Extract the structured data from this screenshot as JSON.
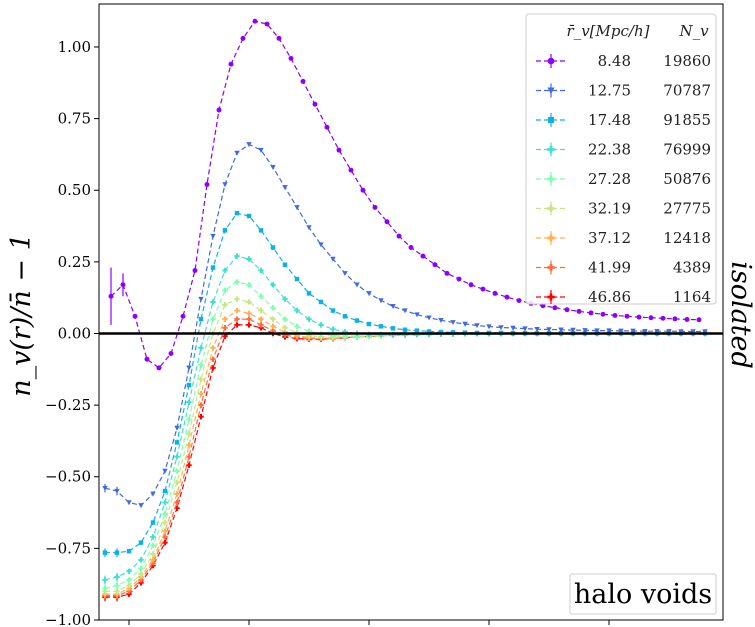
{
  "chart_data": {
    "type": "line",
    "ylabel": "n_v(r)/n̄ − 1",
    "side_label": "isolated",
    "annotation": "halo voids",
    "ylim": [
      -1.0,
      1.15
    ],
    "xlim": [
      0,
      5.2
    ],
    "yticks": [
      -1.0,
      -0.75,
      -0.5,
      -0.25,
      0.0,
      0.25,
      0.5,
      0.75,
      1.0
    ],
    "ytick_labels": [
      "−1.00",
      "−0.75",
      "−0.50",
      "−0.25",
      "0.00",
      "0.25",
      "0.50",
      "0.75",
      "1.00"
    ],
    "xticks": [
      0.25,
      1.25,
      2.25,
      3.25,
      4.25,
      5.25
    ],
    "reference_line": 0.0,
    "legend": {
      "col1_header": "r̄_v[Mpc/h]",
      "col2_header": "N_v",
      "location": "top-right"
    },
    "series": [
      {
        "name": "8.48",
        "count": "19860",
        "color": "#8b00ff",
        "marker": "o",
        "x": [
          0.1,
          0.2,
          0.3,
          0.4,
          0.5,
          0.6,
          0.7,
          0.8,
          0.9,
          1.0,
          1.1,
          1.2,
          1.3,
          1.4,
          1.5,
          1.6,
          1.7,
          1.8,
          1.9,
          2.0,
          2.1,
          2.2,
          2.3,
          2.4,
          2.5,
          2.6,
          2.7,
          2.8,
          2.9,
          3.0,
          3.1,
          3.2,
          3.3,
          3.4,
          3.5,
          3.6,
          3.7,
          3.8,
          3.9,
          4.0,
          4.1,
          4.2,
          4.3,
          4.4,
          4.5,
          4.6,
          4.7,
          4.8,
          4.9,
          5.0
        ],
        "y": [
          0.13,
          0.17,
          0.06,
          -0.09,
          -0.12,
          -0.07,
          0.06,
          0.22,
          0.52,
          0.78,
          0.94,
          1.03,
          1.09,
          1.08,
          1.03,
          0.96,
          0.88,
          0.8,
          0.72,
          0.64,
          0.57,
          0.5,
          0.44,
          0.39,
          0.34,
          0.3,
          0.27,
          0.24,
          0.21,
          0.19,
          0.17,
          0.155,
          0.14,
          0.127,
          0.115,
          0.105,
          0.097,
          0.09,
          0.083,
          0.077,
          0.072,
          0.067,
          0.063,
          0.06,
          0.057,
          0.055,
          0.053,
          0.051,
          0.049,
          0.048
        ]
      },
      {
        "name": "12.75",
        "count": "70787",
        "color": "#4169e1",
        "marker": "v",
        "x": [
          0.05,
          0.15,
          0.25,
          0.35,
          0.45,
          0.55,
          0.65,
          0.75,
          0.85,
          0.95,
          1.05,
          1.15,
          1.25,
          1.35,
          1.45,
          1.55,
          1.65,
          1.75,
          1.85,
          1.95,
          2.05,
          2.15,
          2.25,
          2.35,
          2.45,
          2.55,
          2.65,
          2.75,
          2.85,
          2.95,
          3.05,
          3.15,
          3.25,
          3.35,
          3.45,
          3.55,
          3.65,
          3.75,
          3.85,
          3.95,
          4.05,
          4.15,
          4.25,
          4.35,
          4.45,
          4.55,
          4.65,
          4.75,
          4.85,
          4.95,
          5.05
        ],
        "y": [
          -0.54,
          -0.55,
          -0.59,
          -0.6,
          -0.56,
          -0.48,
          -0.33,
          -0.12,
          0.12,
          0.34,
          0.52,
          0.63,
          0.66,
          0.64,
          0.58,
          0.51,
          0.44,
          0.37,
          0.31,
          0.26,
          0.21,
          0.17,
          0.14,
          0.115,
          0.095,
          0.08,
          0.066,
          0.055,
          0.046,
          0.039,
          0.033,
          0.028,
          0.024,
          0.021,
          0.019,
          0.017,
          0.015,
          0.014,
          0.013,
          0.012,
          0.011,
          0.01,
          0.01,
          0.009,
          0.009,
          0.008,
          0.008,
          0.008,
          0.007,
          0.007,
          0.007
        ]
      },
      {
        "name": "17.48",
        "count": "91855",
        "color": "#10b0e0",
        "marker": "s",
        "x": [
          0.05,
          0.15,
          0.25,
          0.35,
          0.45,
          0.55,
          0.65,
          0.75,
          0.85,
          0.95,
          1.05,
          1.15,
          1.25,
          1.35,
          1.45,
          1.55,
          1.65,
          1.75,
          1.85,
          1.95,
          2.05,
          2.15,
          2.25,
          2.35,
          2.45,
          2.55,
          2.65,
          2.75,
          2.85,
          2.95,
          3.05,
          3.15,
          3.25,
          3.35,
          3.45,
          3.55,
          3.65,
          3.75,
          3.85,
          3.95,
          4.05,
          4.15,
          4.25,
          4.35,
          4.45,
          4.55,
          4.65,
          4.75,
          4.85,
          4.95,
          5.05
        ],
        "y": [
          -0.765,
          -0.765,
          -0.76,
          -0.73,
          -0.66,
          -0.55,
          -0.38,
          -0.18,
          0.05,
          0.23,
          0.36,
          0.42,
          0.41,
          0.36,
          0.3,
          0.24,
          0.19,
          0.14,
          0.11,
          0.08,
          0.06,
          0.045,
          0.033,
          0.025,
          0.018,
          0.013,
          0.01,
          0.007,
          0.005,
          0.004,
          0.003,
          0.002,
          0.002,
          0.002,
          0.001,
          0.001,
          0.001,
          0.001,
          0.001,
          0.001,
          0.001,
          0.001,
          0.001,
          0.001,
          0.001,
          0.001,
          0.001,
          0.001,
          0.001,
          0.001,
          0.001
        ]
      },
      {
        "name": "22.38",
        "count": "76999",
        "color": "#40e0d0",
        "marker": "P",
        "x": [
          0.05,
          0.15,
          0.25,
          0.35,
          0.45,
          0.55,
          0.65,
          0.75,
          0.85,
          0.95,
          1.05,
          1.15,
          1.25,
          1.35,
          1.45,
          1.55,
          1.65,
          1.75,
          1.85,
          1.95,
          2.05,
          2.15,
          2.25,
          2.35,
          2.45,
          2.55,
          2.65,
          2.75,
          2.85,
          2.95,
          3.05,
          3.15,
          3.25,
          3.35,
          3.45,
          3.55,
          3.65,
          3.75,
          3.85,
          3.95,
          4.05,
          4.15,
          4.25,
          4.35,
          4.45,
          4.55,
          4.65,
          4.75,
          4.85,
          4.95,
          5.05
        ],
        "y": [
          -0.86,
          -0.85,
          -0.83,
          -0.79,
          -0.71,
          -0.59,
          -0.43,
          -0.24,
          -0.05,
          0.11,
          0.22,
          0.27,
          0.26,
          0.22,
          0.17,
          0.12,
          0.08,
          0.05,
          0.03,
          0.015,
          0.006,
          0.0,
          -0.003,
          -0.004,
          -0.004,
          -0.004,
          -0.003,
          -0.003,
          -0.002,
          -0.002,
          -0.001,
          -0.001,
          -0.001,
          -0.001,
          0.0,
          0.0,
          0.0,
          0.0,
          0.0,
          0.0,
          0.0,
          0.0,
          0.0,
          0.0,
          0.0,
          0.0,
          0.0,
          0.0,
          0.0,
          0.0,
          0.0
        ]
      },
      {
        "name": "27.28",
        "count": "50876",
        "color": "#7fffb0",
        "marker": "P",
        "x": [
          0.05,
          0.15,
          0.25,
          0.35,
          0.45,
          0.55,
          0.65,
          0.75,
          0.85,
          0.95,
          1.05,
          1.15,
          1.25,
          1.35,
          1.45,
          1.55,
          1.65,
          1.75,
          1.85,
          1.95,
          2.05,
          2.15,
          2.25,
          2.35,
          2.45,
          2.55,
          2.65,
          2.75,
          2.85,
          2.95,
          3.05,
          3.15,
          3.25,
          3.35,
          3.45,
          3.55,
          3.65,
          3.75,
          3.85,
          3.95,
          4.05,
          4.15,
          4.25,
          4.35,
          4.45,
          4.55,
          4.65,
          4.75,
          4.85,
          4.95,
          5.05
        ],
        "y": [
          -0.89,
          -0.88,
          -0.86,
          -0.82,
          -0.74,
          -0.63,
          -0.48,
          -0.3,
          -0.11,
          0.05,
          0.15,
          0.18,
          0.17,
          0.13,
          0.09,
          0.05,
          0.025,
          0.008,
          -0.002,
          -0.007,
          -0.009,
          -0.009,
          -0.008,
          -0.007,
          -0.006,
          -0.005,
          -0.004,
          -0.003,
          -0.002,
          -0.002,
          -0.001,
          -0.001,
          -0.001,
          0.0,
          0.0,
          0.0,
          0.0,
          0.0,
          0.0,
          0.0,
          0.0,
          0.0,
          0.0,
          0.0,
          0.0,
          0.0,
          0.0,
          0.0,
          0.0,
          0.0,
          0.0
        ]
      },
      {
        "name": "32.19",
        "count": "27775",
        "color": "#c8e682",
        "marker": "P",
        "x": [
          0.05,
          0.15,
          0.25,
          0.35,
          0.45,
          0.55,
          0.65,
          0.75,
          0.85,
          0.95,
          1.05,
          1.15,
          1.25,
          1.35,
          1.45,
          1.55,
          1.65,
          1.75,
          1.85,
          1.95,
          2.05,
          2.15,
          2.25,
          2.35,
          2.45,
          2.55,
          2.65,
          2.75,
          2.85,
          2.95,
          3.05,
          3.15,
          3.25,
          3.35,
          3.45,
          3.55,
          3.65,
          3.75,
          3.85,
          3.95,
          4.05,
          4.15,
          4.25,
          4.35,
          4.45,
          4.55,
          4.65,
          4.75,
          4.85,
          4.95,
          5.05
        ],
        "y": [
          -0.9,
          -0.9,
          -0.88,
          -0.84,
          -0.77,
          -0.66,
          -0.52,
          -0.35,
          -0.16,
          0.0,
          0.1,
          0.12,
          0.11,
          0.08,
          0.05,
          0.02,
          0.003,
          -0.007,
          -0.012,
          -0.013,
          -0.012,
          -0.011,
          -0.009,
          -0.008,
          -0.006,
          -0.005,
          -0.004,
          -0.003,
          -0.002,
          -0.002,
          -0.001,
          -0.001,
          -0.001,
          0.0,
          0.0,
          0.0,
          0.0,
          0.0,
          0.0,
          0.0,
          0.0,
          0.0,
          0.0,
          0.0,
          0.0,
          0.0,
          0.0,
          0.0,
          0.0,
          0.0,
          0.0
        ]
      },
      {
        "name": "37.12",
        "count": "12418",
        "color": "#ffb050",
        "marker": "P",
        "x": [
          0.05,
          0.15,
          0.25,
          0.35,
          0.45,
          0.55,
          0.65,
          0.75,
          0.85,
          0.95,
          1.05,
          1.15,
          1.25,
          1.35,
          1.45,
          1.55,
          1.65,
          1.75,
          1.85,
          1.95,
          2.05,
          2.15,
          2.25,
          2.35,
          2.45,
          2.55,
          2.65,
          2.75,
          2.85,
          2.95,
          3.05,
          3.15,
          3.25,
          3.35,
          3.45,
          3.55,
          3.65,
          3.75,
          3.85,
          3.95,
          4.05,
          4.15,
          4.25,
          4.35,
          4.45,
          4.55,
          4.65,
          4.75,
          4.85,
          4.95,
          5.05
        ],
        "y": [
          -0.91,
          -0.91,
          -0.89,
          -0.85,
          -0.79,
          -0.69,
          -0.56,
          -0.39,
          -0.21,
          -0.05,
          0.05,
          0.08,
          0.07,
          0.05,
          0.025,
          0.005,
          -0.008,
          -0.014,
          -0.016,
          -0.016,
          -0.014,
          -0.012,
          -0.01,
          -0.008,
          -0.006,
          -0.005,
          -0.004,
          -0.003,
          -0.002,
          -0.002,
          -0.001,
          -0.001,
          -0.001,
          0.0,
          0.0,
          0.0,
          0.0,
          0.0,
          0.0,
          0.0,
          0.0,
          0.0,
          0.0,
          0.0,
          0.0,
          0.0,
          0.0,
          0.0,
          0.0,
          0.0,
          0.0
        ]
      },
      {
        "name": "41.99",
        "count": "4389",
        "color": "#ff6a40",
        "marker": "P",
        "x": [
          0.05,
          0.15,
          0.25,
          0.35,
          0.45,
          0.55,
          0.65,
          0.75,
          0.85,
          0.95,
          1.05,
          1.15,
          1.25,
          1.35,
          1.45,
          1.55,
          1.65,
          1.75,
          1.85,
          1.95,
          2.05,
          2.15,
          2.25,
          2.35,
          2.45,
          2.55,
          2.65,
          2.75,
          2.85,
          2.95,
          3.05,
          3.15,
          3.25,
          3.35,
          3.45,
          3.55,
          3.65,
          3.75,
          3.85,
          3.95,
          4.05,
          4.15,
          4.25,
          4.35,
          4.45,
          4.55,
          4.65,
          4.75,
          4.85,
          4.95,
          5.05
        ],
        "y": [
          -0.915,
          -0.915,
          -0.9,
          -0.86,
          -0.8,
          -0.71,
          -0.59,
          -0.43,
          -0.25,
          -0.09,
          0.02,
          0.05,
          0.05,
          0.03,
          0.01,
          -0.005,
          -0.014,
          -0.018,
          -0.018,
          -0.017,
          -0.015,
          -0.012,
          -0.01,
          -0.008,
          -0.006,
          -0.005,
          -0.004,
          -0.003,
          -0.002,
          -0.002,
          -0.001,
          -0.001,
          -0.001,
          0.0,
          0.0,
          0.0,
          0.0,
          0.0,
          0.0,
          0.0,
          0.0,
          0.0,
          0.0,
          0.0,
          0.0,
          0.0,
          0.0,
          0.0,
          0.0,
          0.0,
          0.0
        ]
      },
      {
        "name": "46.86",
        "count": "1164",
        "color": "#ff0000",
        "marker": "P",
        "x": [
          0.05,
          0.15,
          0.25,
          0.35,
          0.45,
          0.55,
          0.65,
          0.75,
          0.85,
          0.95,
          1.05,
          1.15,
          1.25,
          1.35,
          1.45,
          1.55,
          1.65,
          1.75,
          1.85,
          1.95,
          2.05,
          2.15,
          2.25,
          2.35,
          2.45,
          2.55,
          2.65,
          2.75,
          2.85,
          2.95,
          3.05,
          3.15,
          3.25,
          3.35,
          3.45,
          3.55,
          3.65,
          3.75,
          3.85,
          3.95,
          4.05,
          4.15,
          4.25,
          4.35,
          4.45,
          4.55,
          4.65,
          4.75,
          4.85,
          4.95,
          5.05
        ],
        "y": [
          -0.92,
          -0.92,
          -0.91,
          -0.87,
          -0.81,
          -0.73,
          -0.61,
          -0.46,
          -0.29,
          -0.12,
          -0.01,
          0.03,
          0.03,
          0.02,
          0.0,
          -0.012,
          -0.018,
          -0.02,
          -0.02,
          -0.018,
          -0.015,
          -0.012,
          -0.01,
          -0.008,
          -0.006,
          -0.005,
          -0.004,
          -0.003,
          -0.002,
          -0.002,
          -0.001,
          -0.001,
          -0.001,
          0.0,
          0.0,
          0.0,
          0.0,
          0.0,
          0.0,
          0.0,
          0.0,
          0.0,
          0.0,
          0.0,
          0.0,
          0.0,
          0.0,
          0.0,
          0.0,
          0.0,
          0.0
        ]
      }
    ]
  }
}
